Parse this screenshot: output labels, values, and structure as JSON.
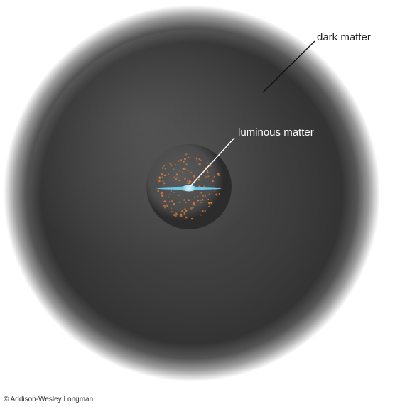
{
  "labels": {
    "dark_matter": "dark matter",
    "luminous_matter": "luminous matter"
  },
  "copyright": "© Addison-Wesley Longman",
  "colors": {
    "halo_core": "#3a3a3a",
    "halo_edge": "#ffffff",
    "inner_sphere": "#4a4a4a",
    "stars": "#d67a3c",
    "disk": "#6ec6e6",
    "leader_dark": "#111111",
    "leader_light": "#ffffff"
  }
}
